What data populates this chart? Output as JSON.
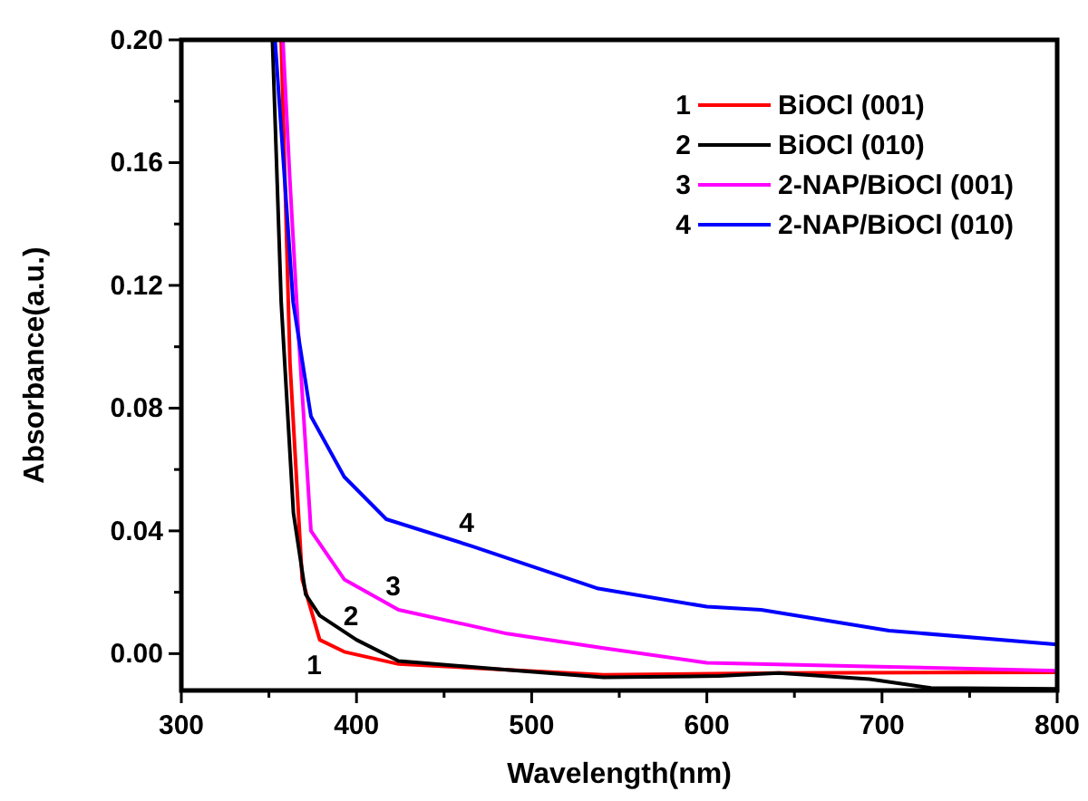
{
  "chart_data": {
    "type": "line",
    "xlabel": "Wavelength(nm)",
    "ylabel": "Absorbance(a.u.)",
    "xlim": [
      300,
      800
    ],
    "ylim": [
      -0.012,
      0.2
    ],
    "xticks": [
      300,
      {
        "value": 350,
        "label": null
      },
      400,
      {
        "value": 450,
        "label": null
      },
      500,
      {
        "value": 550,
        "label": null
      },
      600,
      {
        "value": 650,
        "label": null
      },
      700,
      {
        "value": 750,
        "label": null
      },
      800
    ],
    "yticks": [
      {
        "value": 0,
        "label": "0.00"
      },
      {
        "value": 0.02,
        "label": null
      },
      {
        "value": 0.04,
        "label": "0.04"
      },
      {
        "value": 0.06,
        "label": null
      },
      {
        "value": 0.08,
        "label": "0.08"
      },
      {
        "value": 0.1,
        "label": null
      },
      {
        "value": 0.12,
        "label": "0.12"
      },
      {
        "value": 0.14,
        "label": null
      },
      {
        "value": 0.16,
        "label": "0.16"
      },
      {
        "value": 0.18,
        "label": null
      },
      {
        "value": 0.2,
        "label": "0.20"
      }
    ],
    "grid": false,
    "legend": "top right",
    "line_style": "solid",
    "marker": "none",
    "series": [
      {
        "name": "BiOCl (001)",
        "color": "#ff0000",
        "x": [
          357,
          362,
          369,
          379,
          393,
          424,
          541,
          641,
          800
        ],
        "values": [
          0.2,
          0.095,
          0.0242,
          0.0045,
          0.0006,
          -0.0034,
          -0.0069,
          -0.0063,
          -0.0061
        ]
      },
      {
        "name": "BiOCl (010)",
        "color": "#000000",
        "x": [
          352,
          357,
          364,
          371,
          379,
          400,
          424,
          486,
          541,
          607,
          641,
          693,
          728,
          800
        ],
        "values": [
          0.2,
          0.1146,
          0.0458,
          0.0193,
          0.0124,
          0.0045,
          -0.0024,
          -0.0053,
          -0.0077,
          -0.0073,
          -0.0063,
          -0.0083,
          -0.0112,
          -0.0115
        ]
      },
      {
        "name": "2-NAP/BiOCl (001)",
        "color": "#ff00ff",
        "x": [
          358,
          362,
          367,
          374,
          393,
          424,
          486,
          541,
          600,
          704,
          800
        ],
        "values": [
          0.2,
          0.154,
          0.103,
          0.04,
          0.0242,
          0.0143,
          0.0065,
          0.0018,
          -0.003,
          -0.0043,
          -0.0056
        ]
      },
      {
        "name": "2-NAP/BiOCl (010)",
        "color": "#0000ff",
        "x": [
          353.5,
          363.8,
          374,
          393,
          417,
          466,
          538,
          600,
          631,
          704,
          800
        ],
        "values": [
          0.2,
          0.1146,
          0.0773,
          0.0576,
          0.0438,
          0.035,
          0.0212,
          0.0153,
          0.0143,
          0.0075,
          0.003
        ]
      }
    ],
    "annotations": [
      {
        "text": "1",
        "x": 379,
        "y": 0.0045
      },
      {
        "text": "2",
        "x": 400,
        "y": 0.0045
      },
      {
        "text": "3",
        "x": 424,
        "y": 0.0143
      },
      {
        "text": "4",
        "x": 466,
        "y": 0.035
      }
    ]
  }
}
